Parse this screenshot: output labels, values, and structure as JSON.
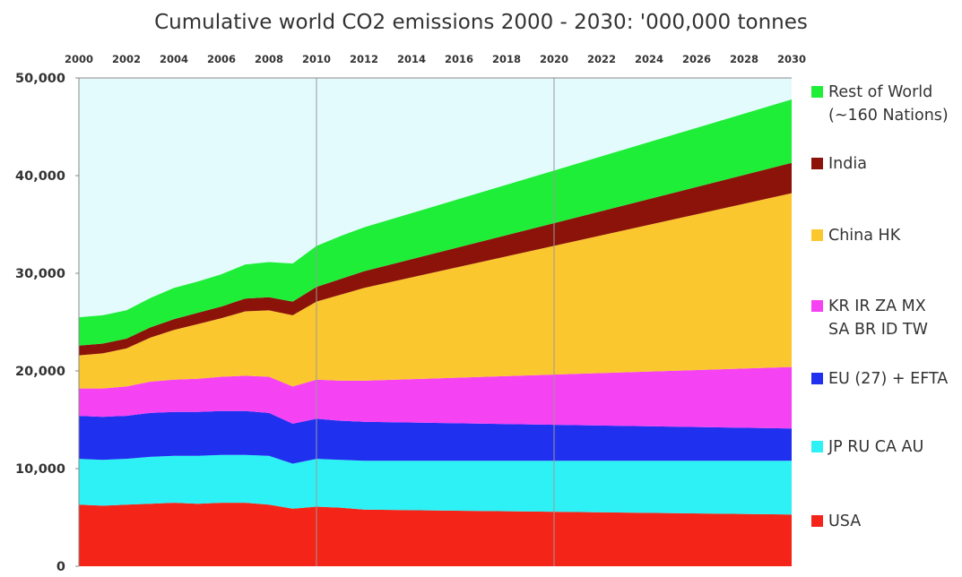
{
  "chart_data": {
    "type": "area",
    "stacked": true,
    "title": "Cumulative world CO2 emissions 2000 - 2030:  '000,000 tonnes",
    "xlabel": "",
    "ylabel": "",
    "xlim": [
      2000,
      2030
    ],
    "ylim": [
      0,
      50000
    ],
    "x_ticks": [
      2000,
      2002,
      2004,
      2006,
      2008,
      2010,
      2012,
      2014,
      2016,
      2018,
      2020,
      2022,
      2024,
      2026,
      2028,
      2030
    ],
    "x_tick_labels": [
      "2000",
      "2002",
      "2004",
      "2006",
      "2008",
      "2010",
      "2012",
      "2014",
      "2016",
      "2018",
      "2020",
      "2022",
      "2024",
      "2026",
      "2028",
      "2030"
    ],
    "y_ticks": [
      0,
      10000,
      20000,
      30000,
      40000,
      50000
    ],
    "y_tick_labels": [
      "0",
      "10,000",
      "20,000",
      "30,000",
      "40,000",
      "50,000"
    ],
    "x_axis_position": "top",
    "grid": "vertical lines at 2010 and 2020",
    "legend_position": "right",
    "plot_background": "#e4fbfd",
    "x": [
      2000,
      2001,
      2002,
      2003,
      2004,
      2005,
      2006,
      2007,
      2008,
      2009,
      2010,
      2011,
      2012,
      2030
    ],
    "series": [
      {
        "name": "USA",
        "color": "#f52418",
        "values": [
          6300,
          6200,
          6300,
          6400,
          6500,
          6400,
          6500,
          6500,
          6300,
          5900,
          6100,
          6000,
          5800,
          5300
        ]
      },
      {
        "name": "JP RU CA AU",
        "color": "#2ef1f5",
        "values": [
          4700,
          4700,
          4700,
          4800,
          4800,
          4900,
          4900,
          4900,
          5000,
          4600,
          4900,
          4900,
          5000,
          5500
        ]
      },
      {
        "name": "EU (27) + EFTA",
        "color": "#2030ef",
        "values": [
          4400,
          4400,
          4400,
          4500,
          4500,
          4500,
          4500,
          4500,
          4400,
          4100,
          4100,
          4000,
          4000,
          3300
        ]
      },
      {
        "name": "KR IR ZA MX SA BR ID TW",
        "color": "#f542f2",
        "values": [
          2800,
          2900,
          3000,
          3200,
          3300,
          3400,
          3500,
          3600,
          3700,
          3800,
          4000,
          4100,
          4200,
          6300
        ]
      },
      {
        "name": "China HK",
        "color": "#fbc72f",
        "values": [
          3400,
          3600,
          3900,
          4500,
          5100,
          5600,
          6000,
          6600,
          6800,
          7300,
          8000,
          8800,
          9500,
          17800
        ]
      },
      {
        "name": "India",
        "color": "#8c1309",
        "values": [
          1000,
          1000,
          1000,
          1050,
          1100,
          1150,
          1200,
          1300,
          1350,
          1400,
          1500,
          1600,
          1700,
          3100
        ]
      },
      {
        "name": "Rest of World (~160 Nations)",
        "color": "#1eee37",
        "values": [
          2900,
          2900,
          2900,
          3000,
          3200,
          3200,
          3300,
          3500,
          3600,
          3900,
          4200,
          4400,
          4500,
          6500
        ]
      }
    ],
    "legend": [
      {
        "label_lines": [
          "Rest of World",
          "(~160 Nations)"
        ],
        "color": "#1eee37"
      },
      {
        "label_lines": [
          "India"
        ],
        "color": "#8c1309"
      },
      {
        "label_lines": [
          "China HK"
        ],
        "color": "#fbc72f"
      },
      {
        "label_lines": [
          "KR IR ZA MX",
          "SA BR ID TW"
        ],
        "color": "#f542f2"
      },
      {
        "label_lines": [
          "EU (27) + EFTA"
        ],
        "color": "#2030ef"
      },
      {
        "label_lines": [
          "JP RU CA AU"
        ],
        "color": "#2ef1f5"
      },
      {
        "label_lines": [
          "USA"
        ],
        "color": "#f52418"
      }
    ]
  }
}
